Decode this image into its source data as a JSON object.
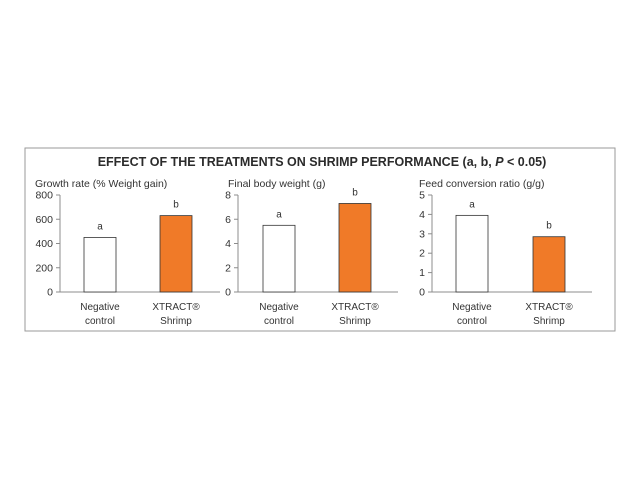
{
  "figure": {
    "title": "EFFECT OF THE TREATMENTS ON SHRIMP PERFORMANCE",
    "title_suffix_open": " (a, b, ",
    "title_suffix_p": "P",
    "title_suffix_close": " < 0.05)",
    "colors": {
      "border": "#9a9a9a",
      "axis": "#8c8c8c",
      "treatment_fill": "#f07a28",
      "control_fill": "#ffffff",
      "bar_stroke": "#333333"
    }
  },
  "chart_data": [
    {
      "type": "bar",
      "ylabel": "Growth rate (% Weight gain)",
      "categories": [
        {
          "line1": "Negative",
          "line2": "control"
        },
        {
          "line1": "XTRACT®",
          "line2": "Shrimp"
        }
      ],
      "values": [
        450,
        630
      ],
      "significance": [
        "a",
        "b"
      ],
      "ylim": [
        0,
        800
      ],
      "ticks": [
        0,
        200,
        400,
        600,
        800
      ]
    },
    {
      "type": "bar",
      "ylabel": "Final body weight (g)",
      "categories": [
        {
          "line1": "Negative",
          "line2": "control"
        },
        {
          "line1": "XTRACT®",
          "line2": "Shrimp"
        }
      ],
      "values": [
        5.5,
        7.3
      ],
      "significance": [
        "a",
        "b"
      ],
      "ylim": [
        0,
        8
      ],
      "ticks": [
        0,
        2,
        4,
        6,
        8
      ]
    },
    {
      "type": "bar",
      "ylabel": "Feed conversion ratio (g/g)",
      "categories": [
        {
          "line1": "Negative",
          "line2": "control"
        },
        {
          "line1": "XTRACT®",
          "line2": "Shrimp"
        }
      ],
      "values": [
        3.95,
        2.85
      ],
      "significance": [
        "a",
        "b"
      ],
      "ylim": [
        0,
        5
      ],
      "ticks": [
        0,
        1,
        2,
        3,
        4,
        5
      ]
    }
  ]
}
